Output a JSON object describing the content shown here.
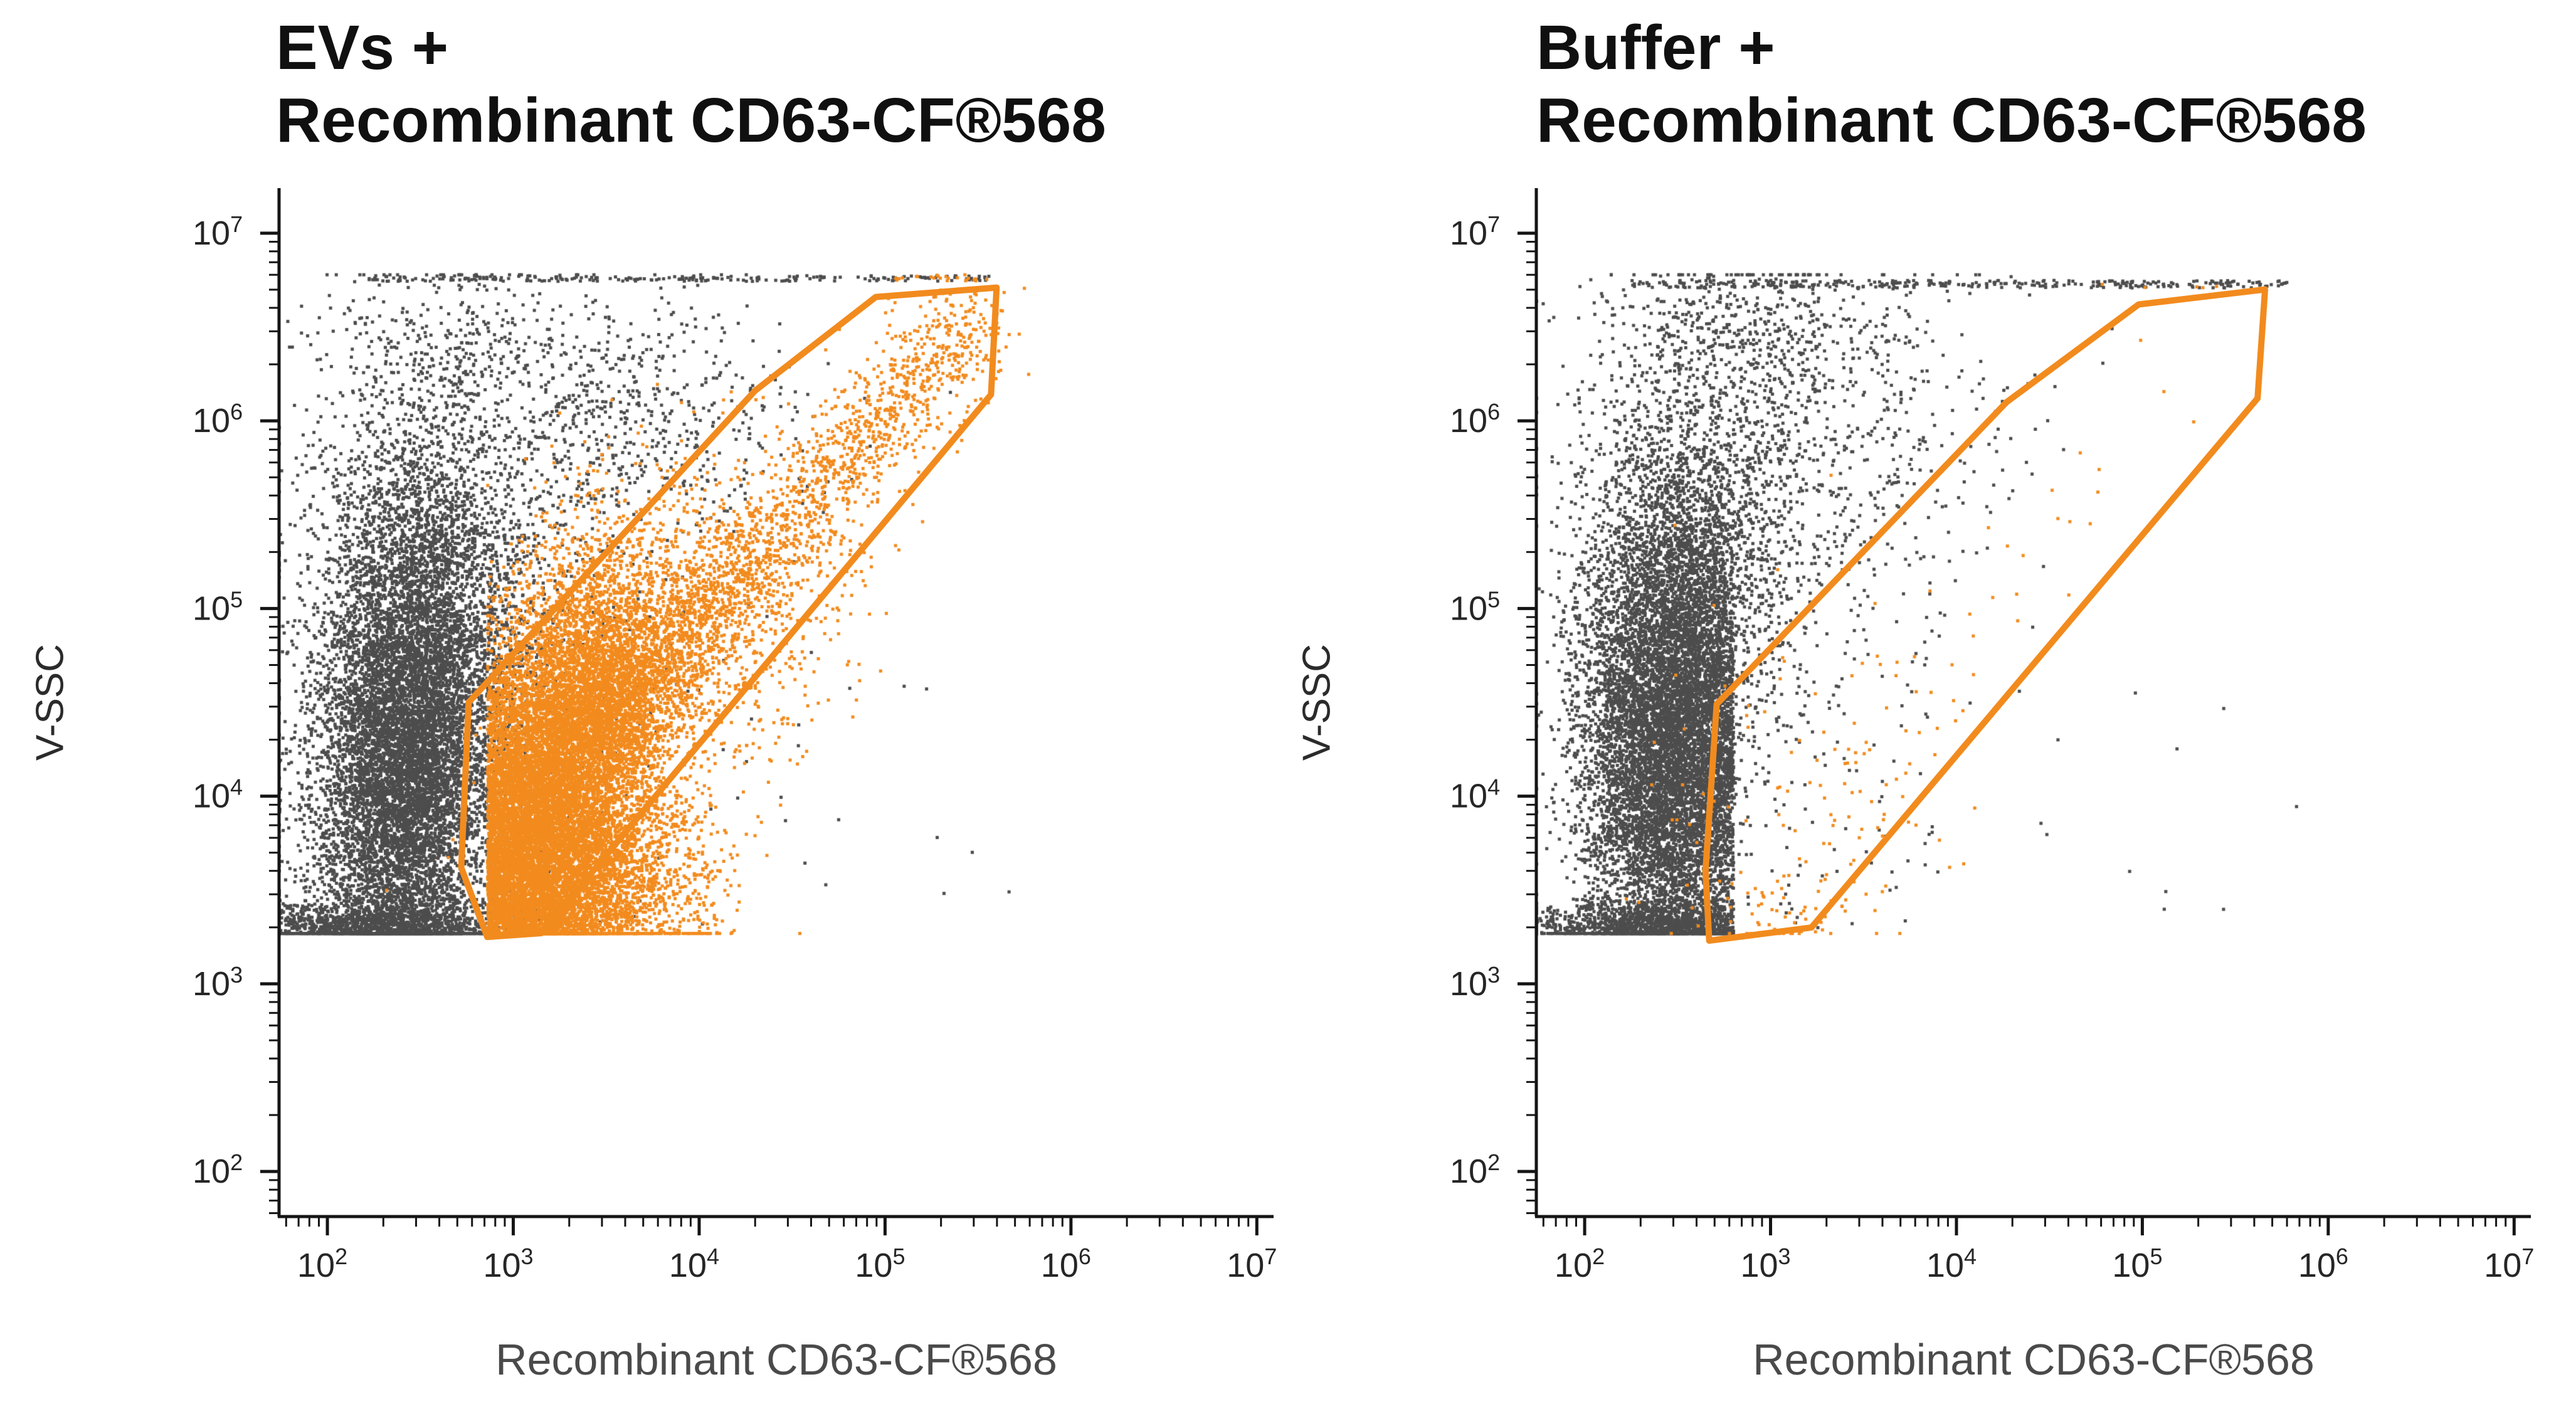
{
  "figure": {
    "background": "#ffffff",
    "dot_gray": "#4d4d4d",
    "accent_orange": "#F28B1E"
  },
  "chart_data": [
    {
      "type": "scatter",
      "panel": "evs",
      "title_lines": [
        "EVs +",
        "Recombinant CD63-CF®568"
      ],
      "xlabel": "Recombinant CD63-CF®568",
      "ylabel": "V-SSC",
      "x_scale": "log10",
      "y_scale": "log10",
      "x_range": [
        1.74,
        7.09
      ],
      "y_range": [
        1.76,
        7.24
      ],
      "tick_base": "10",
      "major_ticks_exp": [
        2,
        3,
        4,
        5,
        6,
        7
      ],
      "grid": false,
      "clip": {
        "x": [
          1.74,
          7.02
        ],
        "y": [
          3.27,
          6.78
        ]
      },
      "gate": {
        "color": "#F28B1E",
        "stroke_width": 10,
        "vertices": [
          [
            2.76,
            4.5
          ],
          [
            4.3,
            6.16
          ],
          [
            4.95,
            6.66
          ],
          [
            5.6,
            6.71
          ],
          [
            5.57,
            6.14
          ],
          [
            3.15,
            3.27
          ],
          [
            2.86,
            3.25
          ],
          [
            2.72,
            3.62
          ]
        ]
      },
      "populations": [
        {
          "name": "background-events",
          "color": "#4d4d4d",
          "clusters": [
            {
              "type": "gauss",
              "n": 9000,
              "cx": 2.42,
              "cy": 4.15,
              "sx": 0.24,
              "sy": 0.62,
              "rho": 0.1
            },
            {
              "type": "gauss",
              "n": 2600,
              "cx": 2.52,
              "cy": 5.15,
              "sx": 0.3,
              "sy": 0.55
            },
            {
              "type": "gauss",
              "n": 1600,
              "cx": 2.25,
              "cy": 3.3,
              "sx": 0.4,
              "sy": 0.07
            },
            {
              "type": "gauss",
              "n": 650,
              "cx": 3.55,
              "cy": 6.05,
              "sx": 0.5,
              "sy": 0.33
            },
            {
              "type": "gauss",
              "n": 500,
              "cx": 3.0,
              "cy": 4.9,
              "sx": 0.55,
              "sy": 0.75
            },
            {
              "type": "hline",
              "n": 230,
              "y": 6.76,
              "jitter": 0.015,
              "x0": 2.2,
              "x1": 5.65
            },
            {
              "type": "uniform",
              "n": 26,
              "x0": 2.9,
              "x1": 5.75,
              "y0": 3.3,
              "y1": 4.6
            },
            {
              "type": "gauss",
              "n": 240,
              "cx": 2.6,
              "cy": 6.42,
              "sx": 0.35,
              "sy": 0.22
            }
          ]
        },
        {
          "name": "cd63-positive-events",
          "color": "#F28B1E",
          "clusters": [
            {
              "type": "gauss",
              "n": 11000,
              "cx": 3.22,
              "cy": 4.15,
              "sx": 0.3,
              "sy": 0.55,
              "rho": 0.45,
              "reflect": {
                "xmin": 2.86
              }
            },
            {
              "type": "gauss",
              "n": 3800,
              "cx": 3.28,
              "cy": 3.55,
              "sx": 0.34,
              "sy": 0.26,
              "reflect": {
                "xmin": 2.86
              }
            },
            {
              "type": "diag",
              "n": 2400,
              "x0": 3.45,
              "y0": 4.35,
              "x1": 5.52,
              "y1": 6.58,
              "spread": 0.14,
              "bias": 1.6
            },
            {
              "type": "gauss",
              "n": 1100,
              "cx": 3.95,
              "cy": 4.8,
              "sx": 0.45,
              "sy": 0.5,
              "rho": 0.5
            },
            {
              "type": "hline",
              "n": 20,
              "y": 6.76,
              "jitter": 0.012,
              "x0": 5.05,
              "x1": 5.6
            },
            {
              "type": "gauss",
              "n": 600,
              "cx": 3.05,
              "cy": 3.32,
              "sx": 0.28,
              "sy": 0.1,
              "reflect": {
                "xmin": 2.86
              }
            }
          ]
        }
      ]
    },
    {
      "type": "scatter",
      "panel": "buffer",
      "title_lines": [
        "Buffer +",
        "Recombinant CD63-CF®568"
      ],
      "xlabel": "Recombinant CD63-CF®568",
      "ylabel": "V-SSC",
      "x_scale": "log10",
      "y_scale": "log10",
      "x_range": [
        1.74,
        7.09
      ],
      "y_range": [
        1.76,
        7.24
      ],
      "tick_base": "10",
      "major_ticks_exp": [
        2,
        3,
        4,
        5,
        6,
        7
      ],
      "grid": false,
      "clip": {
        "x": [
          1.74,
          7.02
        ],
        "y": [
          3.27,
          6.78
        ]
      },
      "gate": {
        "color": "#F28B1E",
        "stroke_width": 10,
        "vertices": [
          [
            2.71,
            4.49
          ],
          [
            4.27,
            6.1
          ],
          [
            4.98,
            6.62
          ],
          [
            5.66,
            6.7
          ],
          [
            5.62,
            6.12
          ],
          [
            3.22,
            3.3
          ],
          [
            2.67,
            3.23
          ],
          [
            2.65,
            3.6
          ]
        ]
      },
      "populations": [
        {
          "name": "background-events",
          "color": "#4d4d4d",
          "clusters": [
            {
              "type": "gauss",
              "n": 8800,
              "cx": 2.47,
              "cy": 4.25,
              "sx": 0.23,
              "sy": 0.6,
              "reflect": {
                "xmax": 2.8
              }
            },
            {
              "type": "gauss",
              "n": 2600,
              "cx": 2.55,
              "cy": 5.2,
              "sx": 0.28,
              "sy": 0.6
            },
            {
              "type": "gauss",
              "n": 1400,
              "cx": 2.35,
              "cy": 3.3,
              "sx": 0.35,
              "sy": 0.07,
              "reflect": {
                "xmax": 2.8
              }
            },
            {
              "type": "gauss",
              "n": 850,
              "cx": 3.15,
              "cy": 5.9,
              "sx": 0.55,
              "sy": 0.5
            },
            {
              "type": "hline",
              "n": 320,
              "y": 6.73,
              "jitter": 0.02,
              "x0": 2.25,
              "x1": 5.78
            },
            {
              "type": "gauss",
              "n": 280,
              "cx": 2.85,
              "cy": 6.5,
              "sx": 0.4,
              "sy": 0.16
            },
            {
              "type": "uniform",
              "n": 26,
              "x0": 2.85,
              "x1": 6.0,
              "y0": 3.3,
              "y1": 4.8
            },
            {
              "type": "uniform",
              "n": 110,
              "x0": 2.8,
              "x1": 3.9,
              "y0": 3.3,
              "y1": 5.3
            }
          ]
        },
        {
          "name": "cd63-positive-events",
          "color": "#F28B1E",
          "clusters": [
            {
              "type": "gauss",
              "n": 110,
              "cx": 3.25,
              "cy": 4.05,
              "sx": 0.42,
              "sy": 0.48
            },
            {
              "type": "diag",
              "n": 34,
              "x0": 3.4,
              "y0": 4.3,
              "x1": 5.3,
              "y1": 6.3,
              "spread": 0.18,
              "bias": 1.2
            },
            {
              "type": "gauss",
              "n": 55,
              "cx": 3.0,
              "cy": 3.38,
              "sx": 0.26,
              "sy": 0.12
            },
            {
              "type": "hline",
              "n": 5,
              "y": 6.72,
              "jitter": 0.01,
              "x0": 4.6,
              "x1": 5.4
            }
          ]
        }
      ]
    }
  ]
}
